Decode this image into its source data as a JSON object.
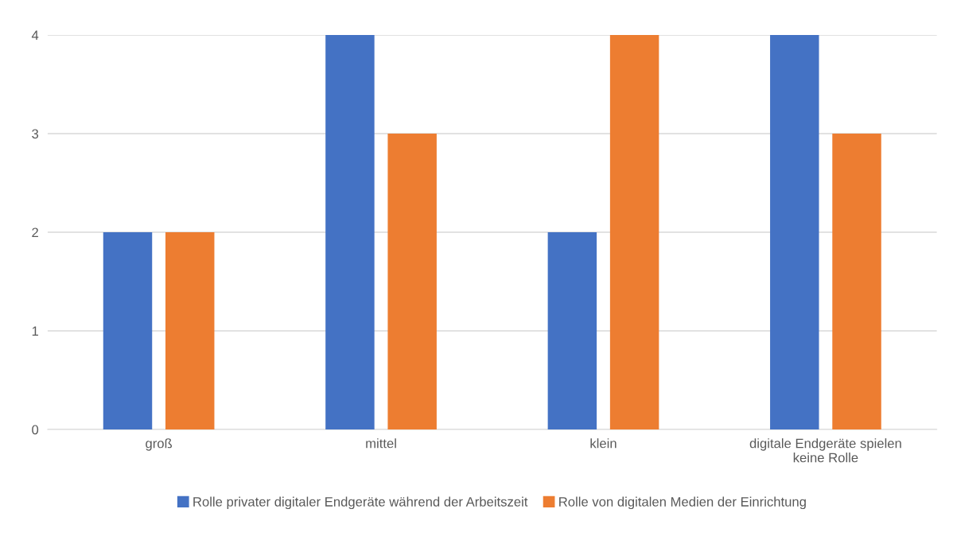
{
  "chart_data": {
    "type": "bar",
    "categories": [
      "groß",
      "mittel",
      "klein",
      "digitale Endgeräte spielen\nkeine Rolle"
    ],
    "series": [
      {
        "name": "Rolle privater digitaler Endgeräte während der Arbeitszeit",
        "color": "#4472c4",
        "values": [
          2,
          4,
          2,
          4
        ]
      },
      {
        "name": "Rolle von digitalen Medien der Einrichtung",
        "color": "#ed7d31",
        "values": [
          2,
          3,
          4,
          3
        ]
      }
    ],
    "ylim": [
      0,
      4
    ],
    "yticks": [
      0,
      1,
      2,
      3,
      4
    ],
    "grid": "y",
    "legend": "bottom"
  }
}
